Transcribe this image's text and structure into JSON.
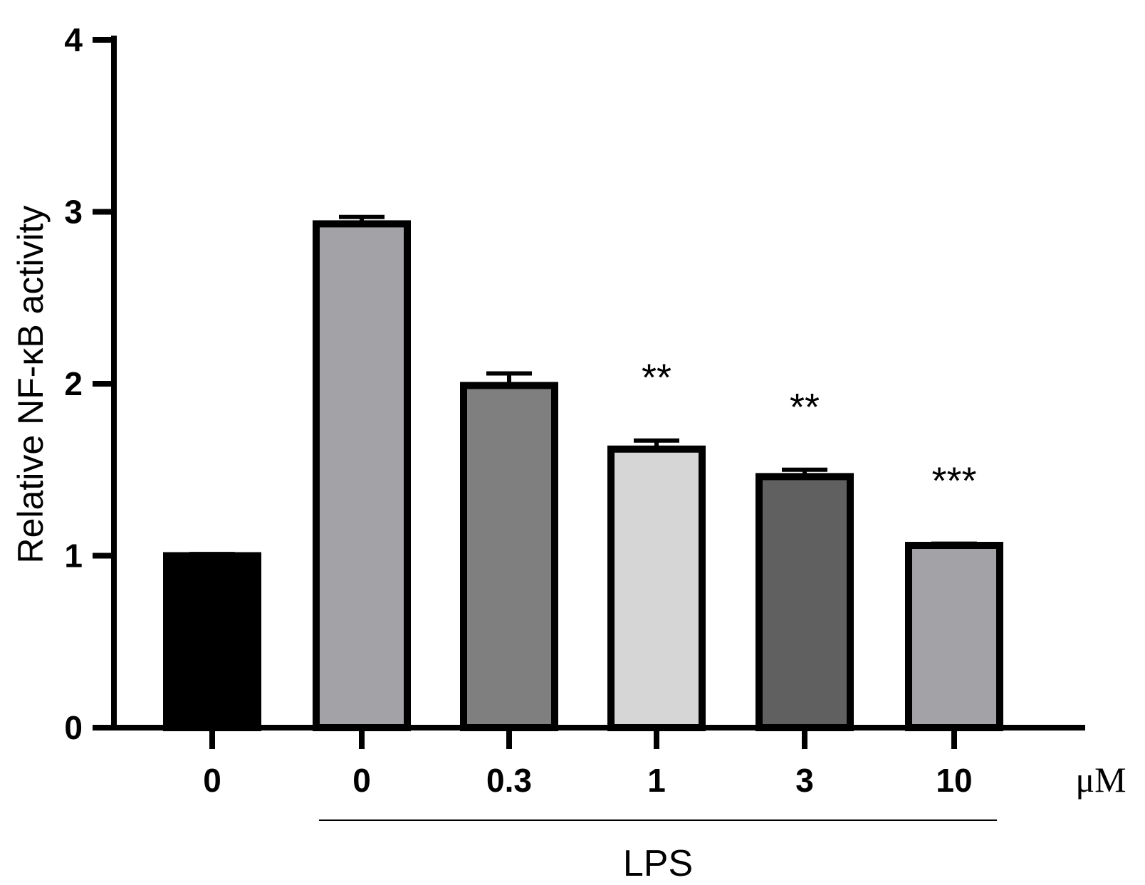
{
  "chart_data": {
    "type": "bar",
    "categories": [
      "0",
      "0",
      "0.3",
      "1",
      "3",
      "10"
    ],
    "values": [
      1.0,
      2.93,
      1.99,
      1.62,
      1.46,
      1.06
    ],
    "errors": [
      0.01,
      0.04,
      0.07,
      0.05,
      0.04,
      0.01
    ],
    "significance": [
      "",
      "",
      "",
      "**",
      "**",
      "***"
    ],
    "bar_colors": [
      "#000000",
      "#a3a3a7",
      "#7f7f7f",
      "#d6d6d6",
      "#606060",
      "#a3a3a7"
    ],
    "ylabel": "Relative NF-κB activity",
    "unit_label": "μM",
    "group_label": "LPS",
    "group_span": [
      1,
      5
    ],
    "ylim": [
      0,
      4
    ],
    "yticks": [
      "0",
      "1",
      "2",
      "3",
      "4"
    ],
    "grid": false
  }
}
